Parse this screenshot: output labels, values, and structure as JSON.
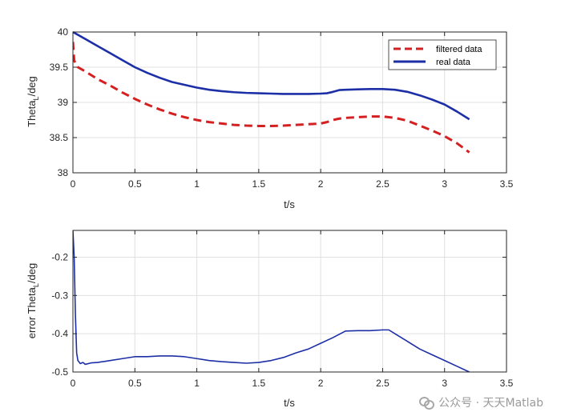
{
  "chart_data": [
    {
      "type": "line",
      "xlabel": "t/s",
      "ylabel": "Theta_L/deg",
      "xlim": [
        0,
        3.5
      ],
      "ylim": [
        38,
        40
      ],
      "xticks": [
        0,
        0.5,
        1,
        1.5,
        2,
        2.5,
        3,
        3.5
      ],
      "yticks": [
        38,
        38.5,
        39,
        39.5,
        40
      ],
      "grid": true,
      "legend": "top-right",
      "series": [
        {
          "name": "filtered data",
          "color": "#d42020",
          "style": "dashed",
          "x": [
            0,
            0.005,
            0.01,
            0.02,
            0.04,
            0.1,
            0.2,
            0.3,
            0.4,
            0.5,
            0.6,
            0.7,
            0.8,
            0.9,
            1.0,
            1.1,
            1.2,
            1.3,
            1.4,
            1.5,
            1.6,
            1.7,
            1.8,
            1.9,
            2.0,
            2.05,
            2.1,
            2.15,
            2.2,
            2.3,
            2.4,
            2.5,
            2.6,
            2.7,
            2.8,
            2.9,
            3.0,
            3.1,
            3.2
          ],
          "y": [
            39.86,
            39.72,
            39.6,
            39.55,
            39.5,
            39.44,
            39.33,
            39.24,
            39.14,
            39.05,
            38.97,
            38.9,
            38.84,
            38.79,
            38.75,
            38.72,
            38.7,
            38.68,
            38.67,
            38.665,
            38.665,
            38.67,
            38.68,
            38.69,
            38.7,
            38.72,
            38.75,
            38.77,
            38.78,
            38.79,
            38.8,
            38.8,
            38.78,
            38.74,
            38.67,
            38.6,
            38.52,
            38.42,
            38.29
          ]
        },
        {
          "name": "real data",
          "color": "#1c2fa6",
          "style": "solid",
          "x": [
            0,
            0.1,
            0.2,
            0.3,
            0.4,
            0.5,
            0.6,
            0.7,
            0.8,
            0.9,
            1.0,
            1.1,
            1.2,
            1.3,
            1.4,
            1.5,
            1.6,
            1.7,
            1.8,
            1.9,
            2.0,
            2.05,
            2.1,
            2.15,
            2.2,
            2.3,
            2.4,
            2.5,
            2.6,
            2.7,
            2.8,
            2.9,
            3.0,
            3.1,
            3.2
          ],
          "y": [
            40.0,
            39.9,
            39.8,
            39.7,
            39.6,
            39.5,
            39.42,
            39.35,
            39.29,
            39.25,
            39.21,
            39.18,
            39.16,
            39.145,
            39.135,
            39.13,
            39.125,
            39.12,
            39.12,
            39.12,
            39.125,
            39.13,
            39.15,
            39.175,
            39.18,
            39.185,
            39.19,
            39.19,
            39.18,
            39.15,
            39.1,
            39.04,
            38.97,
            38.87,
            38.76
          ]
        }
      ]
    },
    {
      "type": "line",
      "xlabel": "t/s",
      "ylabel": "error Theta_L/deg",
      "xlim": [
        0,
        3.5
      ],
      "ylim": [
        -0.5,
        -0.13
      ],
      "xticks": [
        0,
        0.5,
        1,
        1.5,
        2,
        2.5,
        3,
        3.5
      ],
      "yticks": [
        -0.5,
        -0.4,
        -0.3,
        -0.2
      ],
      "grid": true,
      "series": [
        {
          "color": "#1c2fa6",
          "style": "solid",
          "x": [
            0,
            0.01,
            0.02,
            0.03,
            0.04,
            0.06,
            0.08,
            0.1,
            0.15,
            0.2,
            0.3,
            0.4,
            0.5,
            0.6,
            0.7,
            0.8,
            0.9,
            1.0,
            1.1,
            1.2,
            1.3,
            1.4,
            1.5,
            1.6,
            1.7,
            1.8,
            1.9,
            2.0,
            2.1,
            2.2,
            2.3,
            2.4,
            2.5,
            2.55,
            2.6,
            2.7,
            2.8,
            2.9,
            3.0,
            3.1,
            3.2
          ],
          "y": [
            -0.13,
            -0.2,
            -0.35,
            -0.45,
            -0.47,
            -0.478,
            -0.475,
            -0.48,
            -0.476,
            -0.475,
            -0.47,
            -0.465,
            -0.46,
            -0.46,
            -0.458,
            -0.458,
            -0.46,
            -0.465,
            -0.47,
            -0.473,
            -0.475,
            -0.477,
            -0.475,
            -0.47,
            -0.462,
            -0.45,
            -0.44,
            -0.425,
            -0.41,
            -0.393,
            -0.392,
            -0.392,
            -0.39,
            -0.39,
            -0.4,
            -0.42,
            -0.44,
            -0.455,
            -0.47,
            -0.485,
            -0.5
          ]
        }
      ]
    }
  ],
  "legend": {
    "items": [
      "filtered data",
      "real data"
    ]
  },
  "watermark": {
    "text": "公众号 · 天天Matlab"
  },
  "colors": {
    "axis": "#262626",
    "grid": "#e0e0e0"
  }
}
